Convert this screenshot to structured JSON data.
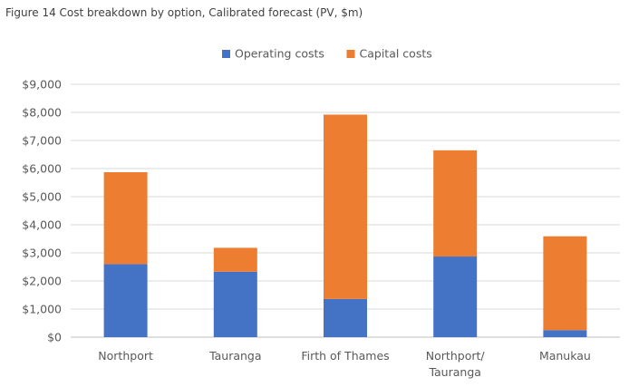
{
  "figure_title": "Figure 14 Cost breakdown by option, Calibrated forecast (PV, $m)",
  "colors": {
    "operating": "#4472C4",
    "capital": "#ED7D31",
    "grid": "#D9D9D9",
    "axis": "#BFBFBF"
  },
  "chart_data": {
    "type": "bar",
    "stacked": true,
    "title": "",
    "xlabel": "",
    "ylabel": "",
    "categories": [
      [
        "Northport"
      ],
      [
        "Tauranga"
      ],
      [
        "Firth of Thames"
      ],
      [
        "Northport/",
        "Tauranga"
      ],
      [
        "Manukau"
      ]
    ],
    "series": [
      {
        "name": "Operating costs",
        "color": "#4472C4",
        "values": [
          2600,
          2330,
          1360,
          2870,
          250
        ]
      },
      {
        "name": "Capital costs",
        "color": "#ED7D31",
        "values": [
          3270,
          850,
          6560,
          3780,
          3340
        ]
      }
    ],
    "ylim": [
      0,
      9000
    ],
    "yticks": [
      "$0",
      "$1,000",
      "$2,000",
      "$3,000",
      "$4,000",
      "$5,000",
      "$6,000",
      "$7,000",
      "$8,000",
      "$9,000"
    ],
    "grid": true,
    "legend_position": "top"
  }
}
